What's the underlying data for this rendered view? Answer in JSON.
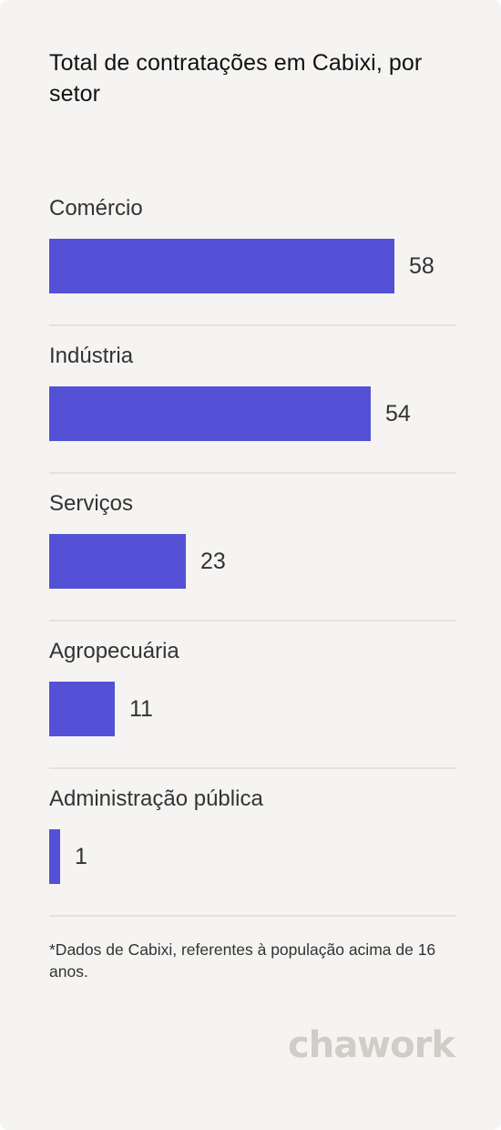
{
  "title": "Total de contratações em Cabixi, por setor",
  "footnote": "*Dados de Cabixi, referentes à população acima de 16 anos.",
  "brand": {
    "logo_text": "chawork",
    "logo_icon": "chawork-logo"
  },
  "colors": {
    "bar": "#5551d6",
    "background": "#f5f4f2",
    "divider": "#e3e2df",
    "logo": "#cfcdc6"
  },
  "chart_data": {
    "type": "bar",
    "orientation": "horizontal",
    "title": "Total de contratações em Cabixi, por setor",
    "categories": [
      "Comércio",
      "Indústria",
      "Serviços",
      "Agropecuária",
      "Administração pública"
    ],
    "values": [
      58,
      54,
      23,
      11,
      1
    ],
    "xlim": [
      0,
      58
    ],
    "grid": false,
    "legend": "none"
  }
}
